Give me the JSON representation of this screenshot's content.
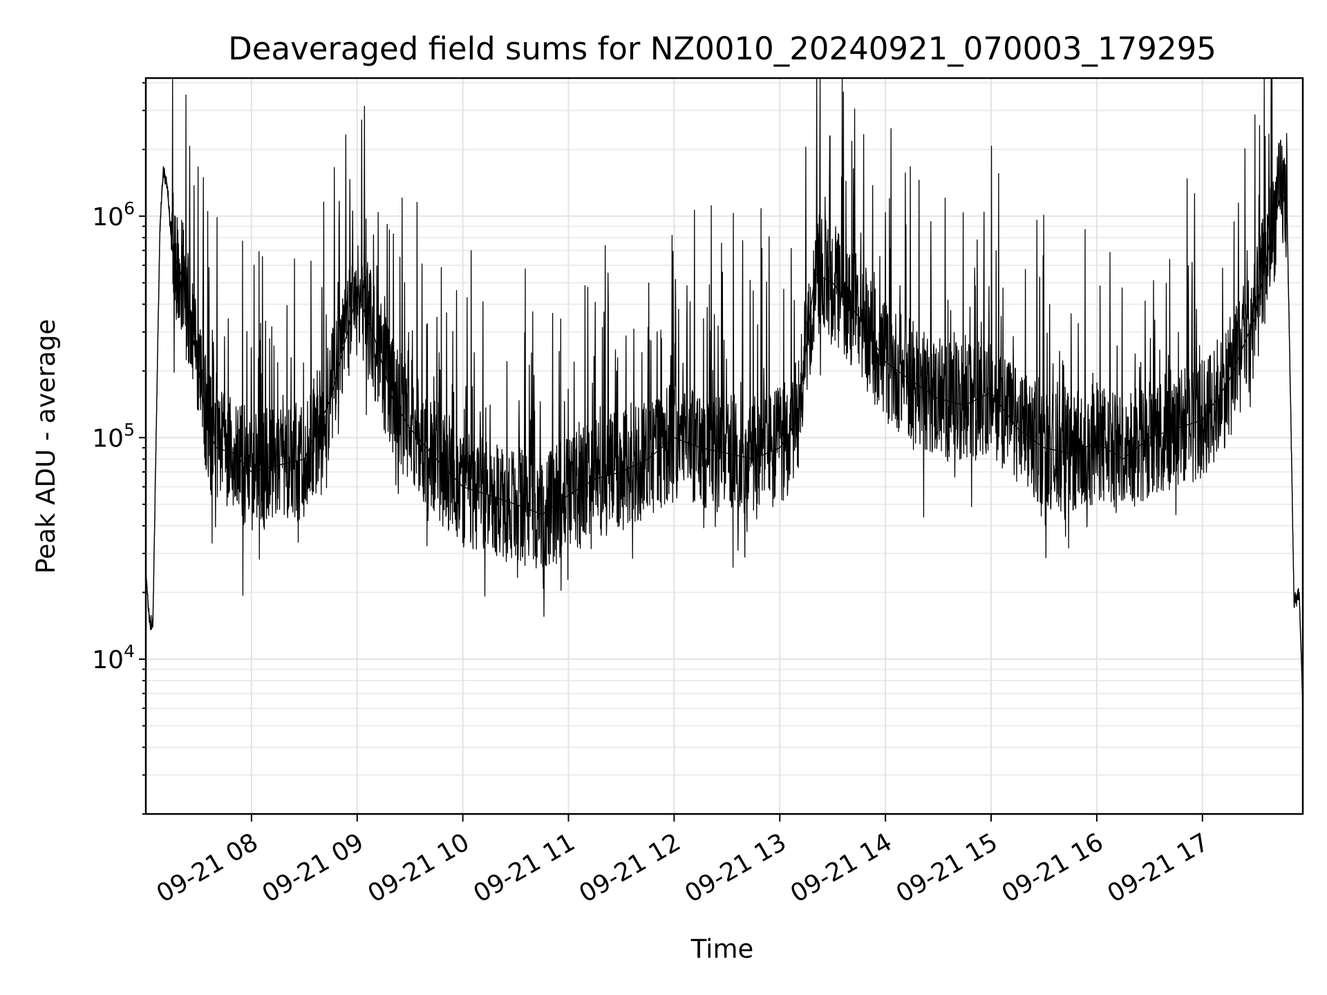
{
  "chart_data": {
    "type": "line",
    "title": "Deaveraged field sums for NZ0010_20240921_070003_179295",
    "xlabel": "Time",
    "ylabel": "Peak ADU - average",
    "yscale": "log",
    "ylim": [
      2000,
      4200000
    ],
    "xlim": [
      "2024-09-21 07:00",
      "2024-09-21 17:57"
    ],
    "grid": true,
    "x_ticks": [
      "09-21 08",
      "09-21 09",
      "09-21 10",
      "09-21 11",
      "09-21 12",
      "09-21 13",
      "09-21 14",
      "09-21 15",
      "09-21 16",
      "09-21 17"
    ],
    "y_ticks": [
      {
        "value": 10000,
        "base": "10",
        "exp": "4"
      },
      {
        "value": 100000,
        "base": "10",
        "exp": "5"
      },
      {
        "value": 1000000,
        "base": "10",
        "exp": "6"
      }
    ],
    "series": [
      {
        "color": "#000000",
        "x": [
          "2024-09-21 07:00",
          "2024-09-21 07:02",
          "2024-09-21 07:04",
          "2024-09-21 07:06",
          "2024-09-21 07:08",
          "2024-09-21 07:10",
          "2024-09-21 07:12",
          "2024-09-21 07:15",
          "2024-09-21 07:20",
          "2024-09-21 07:25",
          "2024-09-21 07:30",
          "2024-09-21 07:35",
          "2024-09-21 07:40",
          "2024-09-21 07:50",
          "2024-09-21 08:00",
          "2024-09-21 08:15",
          "2024-09-21 08:30",
          "2024-09-21 08:45",
          "2024-09-21 09:00",
          "2024-09-21 09:10",
          "2024-09-21 09:20",
          "2024-09-21 09:30",
          "2024-09-21 09:45",
          "2024-09-21 10:00",
          "2024-09-21 10:15",
          "2024-09-21 10:30",
          "2024-09-21 10:45",
          "2024-09-21 11:00",
          "2024-09-21 11:15",
          "2024-09-21 11:30",
          "2024-09-21 11:45",
          "2024-09-21 12:00",
          "2024-09-21 12:15",
          "2024-09-21 12:30",
          "2024-09-21 12:45",
          "2024-09-21 13:00",
          "2024-09-21 13:10",
          "2024-09-21 13:20",
          "2024-09-21 13:30",
          "2024-09-21 13:45",
          "2024-09-21 14:00",
          "2024-09-21 14:15",
          "2024-09-21 14:30",
          "2024-09-21 14:45",
          "2024-09-21 15:00",
          "2024-09-21 15:15",
          "2024-09-21 15:30",
          "2024-09-21 15:45",
          "2024-09-21 16:00",
          "2024-09-21 16:15",
          "2024-09-21 16:30",
          "2024-09-21 16:45",
          "2024-09-21 17:00",
          "2024-09-21 17:15",
          "2024-09-21 17:30",
          "2024-09-21 17:40",
          "2024-09-21 17:45",
          "2024-09-21 17:48",
          "2024-09-21 17:50",
          "2024-09-21 17:52",
          "2024-09-21 17:55",
          "2024-09-21 17:57"
        ],
        "y": [
          25000,
          15000,
          14000,
          120000,
          900000,
          1650000,
          1400000,
          700000,
          550000,
          350000,
          200000,
          110000,
          90000,
          85000,
          70000,
          75000,
          80000,
          150000,
          450000,
          280000,
          150000,
          110000,
          80000,
          60000,
          55000,
          50000,
          45000,
          55000,
          65000,
          70000,
          80000,
          100000,
          90000,
          85000,
          80000,
          90000,
          120000,
          550000,
          500000,
          350000,
          220000,
          180000,
          150000,
          140000,
          160000,
          110000,
          90000,
          85000,
          95000,
          80000,
          100000,
          110000,
          120000,
          180000,
          350000,
          900000,
          1300000,
          1100000,
          150000,
          18000,
          20000,
          6000
        ]
      }
    ]
  }
}
